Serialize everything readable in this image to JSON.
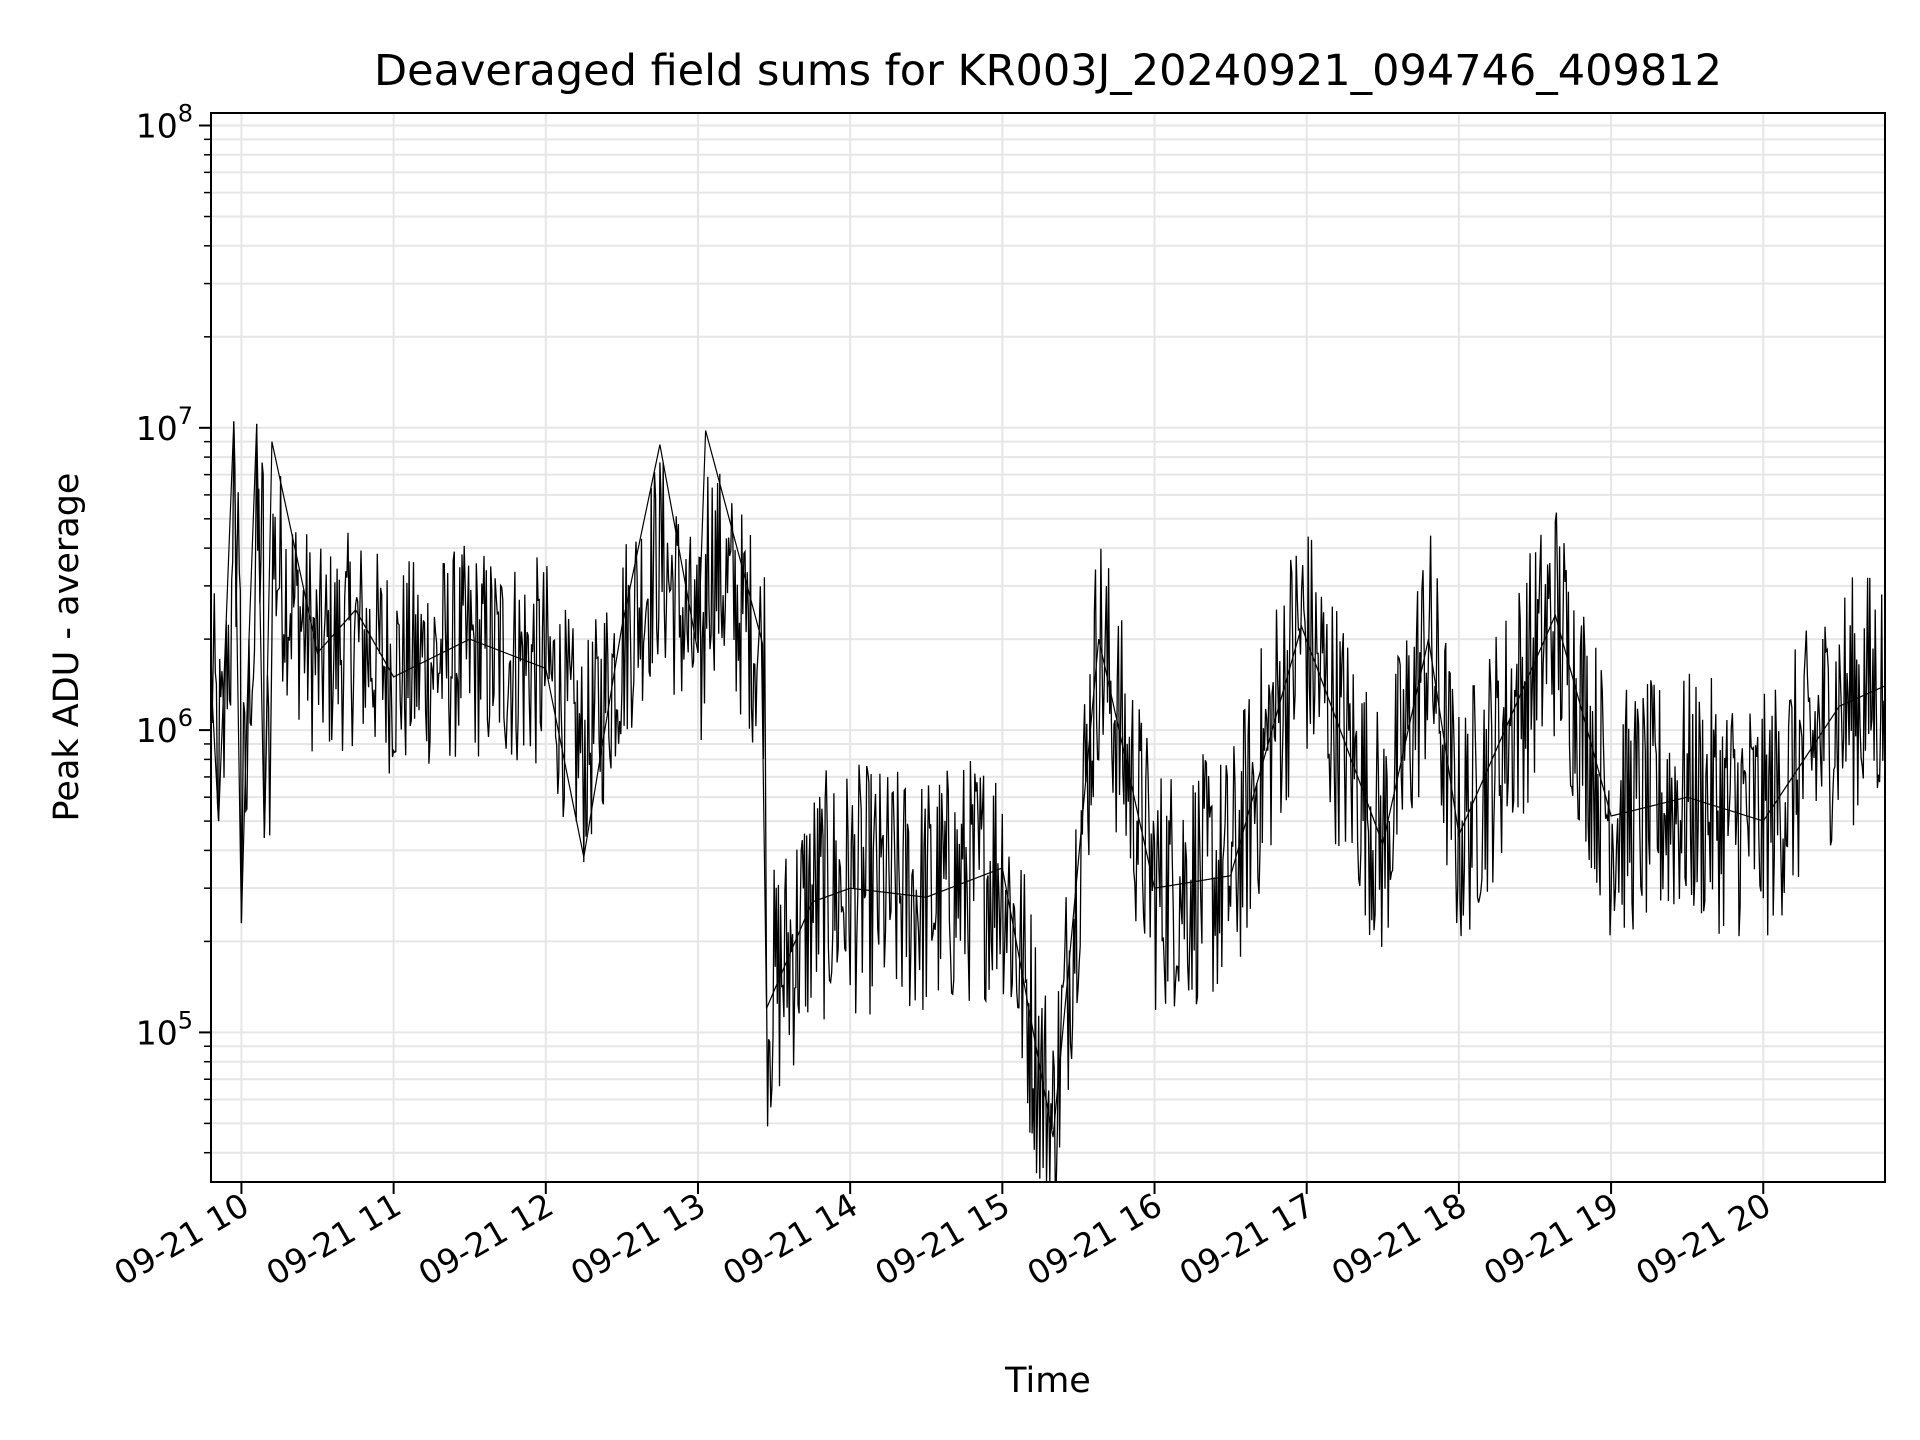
{
  "chart_data": {
    "type": "line",
    "title": "Deaveraged field sums for KR003J_20240921_094746_409812",
    "xlabel": "Time",
    "ylabel": "Peak ADU - average",
    "x_scale": "time",
    "y_scale": "log",
    "xlim": [
      "2024-09-21T09:48:00",
      "2024-09-21T20:48:00"
    ],
    "ylim": [
      32000,
      110000000
    ],
    "x_ticks": [
      {
        "t": "2024-09-21T10:00",
        "label": "09-21 10"
      },
      {
        "t": "2024-09-21T11:00",
        "label": "09-21 11"
      },
      {
        "t": "2024-09-21T12:00",
        "label": "09-21 12"
      },
      {
        "t": "2024-09-21T13:00",
        "label": "09-21 13"
      },
      {
        "t": "2024-09-21T14:00",
        "label": "09-21 14"
      },
      {
        "t": "2024-09-21T15:00",
        "label": "09-21 15"
      },
      {
        "t": "2024-09-21T16:00",
        "label": "09-21 16"
      },
      {
        "t": "2024-09-21T17:00",
        "label": "09-21 17"
      },
      {
        "t": "2024-09-21T18:00",
        "label": "09-21 18"
      },
      {
        "t": "2024-09-21T19:00",
        "label": "09-21 19"
      },
      {
        "t": "2024-09-21T20:00",
        "label": "09-21 20"
      }
    ],
    "y_ticks": [
      {
        "value": 100000,
        "base": "10",
        "exp": "5"
      },
      {
        "value": 1000000,
        "base": "10",
        "exp": "6"
      },
      {
        "value": 10000000,
        "base": "10",
        "exp": "7"
      },
      {
        "value": 100000000,
        "base": "10",
        "exp": "8"
      }
    ],
    "grid": true,
    "legend": false,
    "line_color": "#000000",
    "grid_color": "#e6e6e6",
    "series": [
      {
        "values": [
          {
            "t": "2024-09-21T09:48",
            "y": 1500000
          },
          {
            "t": "2024-09-21T09:51",
            "y": 500000
          },
          {
            "t": "2024-09-21T09:54",
            "y": 2300000
          },
          {
            "t": "2024-09-21T09:57",
            "y": 10500000
          },
          {
            "t": "2024-09-21T10:00",
            "y": 230000
          },
          {
            "t": "2024-09-21T10:03",
            "y": 2000000
          },
          {
            "t": "2024-09-21T10:06",
            "y": 10300000
          },
          {
            "t": "2024-09-21T10:09",
            "y": 440000
          },
          {
            "t": "2024-09-21T10:12",
            "y": 9000000
          },
          {
            "t": "2024-09-21T10:30",
            "y": 1800000
          },
          {
            "t": "2024-09-21T10:45",
            "y": 2500000
          },
          {
            "t": "2024-09-21T11:00",
            "y": 1500000
          },
          {
            "t": "2024-09-21T11:30",
            "y": 2000000
          },
          {
            "t": "2024-09-21T12:00",
            "y": 1600000
          },
          {
            "t": "2024-09-21T12:15",
            "y": 380000
          },
          {
            "t": "2024-09-21T12:30",
            "y": 2200000
          },
          {
            "t": "2024-09-21T12:45",
            "y": 8800000
          },
          {
            "t": "2024-09-21T13:00",
            "y": 1800000
          },
          {
            "t": "2024-09-21T13:03",
            "y": 9800000
          },
          {
            "t": "2024-09-21T13:25",
            "y": 2000000
          },
          {
            "t": "2024-09-21T13:27",
            "y": 120000
          },
          {
            "t": "2024-09-21T13:45",
            "y": 270000
          },
          {
            "t": "2024-09-21T14:00",
            "y": 300000
          },
          {
            "t": "2024-09-21T14:30",
            "y": 280000
          },
          {
            "t": "2024-09-21T15:00",
            "y": 350000
          },
          {
            "t": "2024-09-21T15:20",
            "y": 45000
          },
          {
            "t": "2024-09-21T15:38",
            "y": 2000000
          },
          {
            "t": "2024-09-21T16:00",
            "y": 300000
          },
          {
            "t": "2024-09-21T16:30",
            "y": 330000
          },
          {
            "t": "2024-09-21T16:58",
            "y": 2200000
          },
          {
            "t": "2024-09-21T17:30",
            "y": 420000
          },
          {
            "t": "2024-09-21T17:48",
            "y": 2000000
          },
          {
            "t": "2024-09-21T18:00",
            "y": 450000
          },
          {
            "t": "2024-09-21T18:38",
            "y": 2400000
          },
          {
            "t": "2024-09-21T19:00",
            "y": 520000
          },
          {
            "t": "2024-09-21T19:30",
            "y": 600000
          },
          {
            "t": "2024-09-21T20:00",
            "y": 500000
          },
          {
            "t": "2024-09-21T20:30",
            "y": 1200000
          },
          {
            "t": "2024-09-21T20:48",
            "y": 1400000
          }
        ]
      }
    ]
  }
}
